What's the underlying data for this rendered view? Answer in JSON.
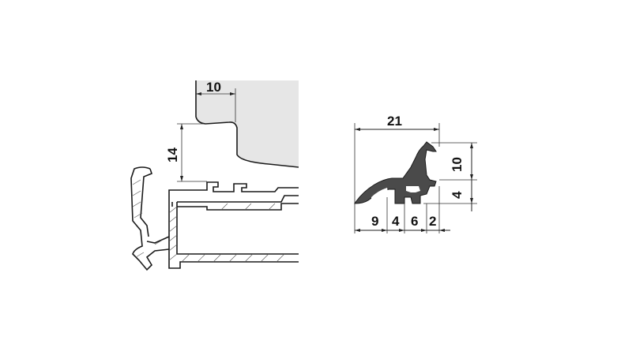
{
  "left_drawing": {
    "dim_top": "10",
    "dim_side": "14"
  },
  "right_drawing": {
    "dim_width": "21",
    "dim_height": "10",
    "dim_lower_height": "4",
    "dim_bottom": [
      "9",
      "4",
      "6",
      "2"
    ]
  },
  "colors": {
    "seal_fill": "#4a4a4a",
    "panel_fill": "#e6e6e6",
    "line": "#1a1a1a"
  }
}
